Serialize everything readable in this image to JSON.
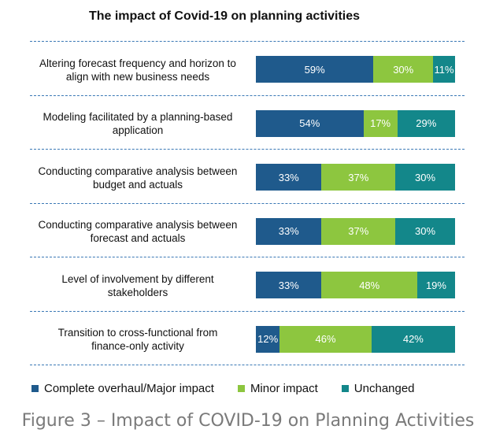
{
  "chart_data": {
    "type": "bar",
    "orientation": "horizontal",
    "stacked": true,
    "title": "The impact of Covid-19 on planning activities",
    "categories": [
      [
        "Altering forecast frequency and horizon to",
        "align with new business needs"
      ],
      [
        "Modeling facilitated by a planning-based",
        "application"
      ],
      [
        "Conducting comparative analysis between",
        "budget and actuals"
      ],
      [
        "Conducting comparative analysis between",
        "forecast and actuals"
      ],
      [
        "Level of involvement by different",
        "stakeholders"
      ],
      [
        "Transition to cross-functional from",
        "finance-only activity"
      ]
    ],
    "series": [
      {
        "name": "Complete overhaul/Major impact",
        "color": "#1f5a8c",
        "values": [
          59,
          54,
          33,
          33,
          33,
          12
        ]
      },
      {
        "name": "Minor impact",
        "color": "#8dc63f",
        "values": [
          30,
          17,
          37,
          37,
          48,
          46
        ]
      },
      {
        "name": "Unchanged",
        "color": "#13878a",
        "values": [
          11,
          29,
          30,
          30,
          19,
          42
        ]
      }
    ],
    "value_suffix": "%",
    "xlim": [
      0,
      100
    ],
    "legend_position": "bottom"
  },
  "caption": "Figure 3 – Impact of COVID-19 on Planning Activities"
}
